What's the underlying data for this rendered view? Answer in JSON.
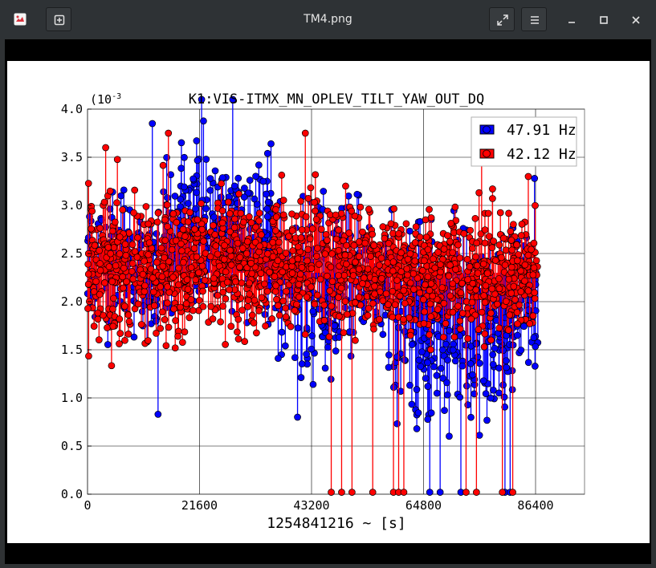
{
  "window": {
    "title": "TM4.png",
    "app_icon": "image-viewer-icon",
    "buttons": [
      "new-tab-icon",
      "fullscreen-icon",
      "menu-icon",
      "minimize-icon",
      "maximize-icon",
      "close-icon"
    ]
  },
  "chart_data": {
    "type": "scatter",
    "style": "stem",
    "title": "K1:VIS-ITMX_MN_OPLEV_TILT_YAW_OUT_DQ",
    "xlabel": "1254841216 ~ [s]",
    "ylabel": "",
    "y_scale_label": "(10",
    "y_scale_exp": "-3",
    "xlim": [
      0,
      86400
    ],
    "ylim": [
      0,
      4.0
    ],
    "x_ticks": [
      0,
      21600,
      43200,
      64800,
      86400
    ],
    "y_ticks": [
      0.0,
      0.5,
      1.0,
      1.5,
      2.0,
      2.5,
      3.0,
      3.5,
      4.0
    ],
    "x_tick_labels": [
      "0",
      "21600",
      "43200",
      "64800",
      "86400"
    ],
    "y_tick_labels": [
      "0.0",
      "0.5",
      "1.0",
      "1.5",
      "2.0",
      "2.5",
      "3.0",
      "3.5",
      "4.0"
    ],
    "grid": true,
    "legend_position": "top-right",
    "series": [
      {
        "name": "47.91 Hz",
        "color": "#0000ff",
        "segments": [
          {
            "x": [
              0,
              15000
            ],
            "mean": 2.35,
            "spread": 0.85
          },
          {
            "x": [
              15000,
              36000
            ],
            "mean": 2.8,
            "spread": 1.0
          },
          {
            "x": [
              36000,
              48000
            ],
            "mean": 2.1,
            "spread": 1.1
          },
          {
            "x": [
              48000,
              58000
            ],
            "mean": 2.2,
            "spread": 0.9
          },
          {
            "x": [
              58000,
              82000
            ],
            "mean": 1.75,
            "spread": 1.2
          },
          {
            "x": [
              82000,
              87000
            ],
            "mean": 2.1,
            "spread": 0.9
          }
        ],
        "points": [
          {
            "x": 13600,
            "y": 0.83
          },
          {
            "x": 22000,
            "y": 4.1
          },
          {
            "x": 28000,
            "y": 4.1
          },
          {
            "x": 12500,
            "y": 3.85
          },
          {
            "x": 40500,
            "y": 0.8
          },
          {
            "x": 63500,
            "y": 0.68
          },
          {
            "x": 66000,
            "y": 0.02
          },
          {
            "x": 68000,
            "y": 0.02
          },
          {
            "x": 72000,
            "y": 0.02
          },
          {
            "x": 80500,
            "y": 0.02
          },
          {
            "x": 81500,
            "y": 0.02
          },
          {
            "x": 86200,
            "y": 3.28
          },
          {
            "x": 86300,
            "y": 1.33
          }
        ]
      },
      {
        "name": "42.12 Hz",
        "color": "#ff0000",
        "segments": [
          {
            "x": [
              0,
              20000
            ],
            "mean": 2.35,
            "spread": 0.95
          },
          {
            "x": [
              20000,
              55000
            ],
            "mean": 2.4,
            "spread": 0.8
          },
          {
            "x": [
              55000,
              87000
            ],
            "mean": 2.3,
            "spread": 0.75
          }
        ],
        "points": [
          {
            "x": 15600,
            "y": 3.75
          },
          {
            "x": 3500,
            "y": 3.6
          },
          {
            "x": 42000,
            "y": 3.75
          },
          {
            "x": 47000,
            "y": 0.02
          },
          {
            "x": 49000,
            "y": 0.02
          },
          {
            "x": 51000,
            "y": 0.02
          },
          {
            "x": 55000,
            "y": 0.02
          },
          {
            "x": 59000,
            "y": 0.02
          },
          {
            "x": 60000,
            "y": 0.02
          },
          {
            "x": 61000,
            "y": 0.02
          },
          {
            "x": 73000,
            "y": 0.02
          },
          {
            "x": 75000,
            "y": 0.02
          },
          {
            "x": 80000,
            "y": 0.02
          },
          {
            "x": 82000,
            "y": 0.02
          },
          {
            "x": 76000,
            "y": 3.6
          },
          {
            "x": 85000,
            "y": 3.3
          }
        ]
      }
    ]
  }
}
